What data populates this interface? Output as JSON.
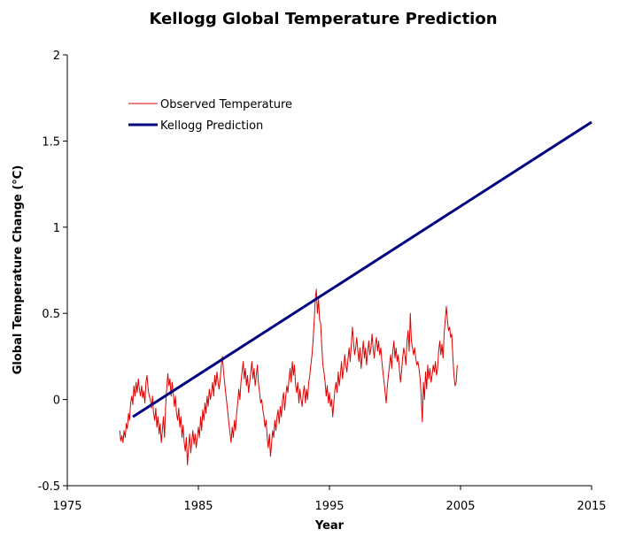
{
  "chart_data": {
    "type": "line",
    "title": "Kellogg Global Temperature Prediction",
    "xlabel": "Year",
    "ylabel": "Global Temperature Change (°C)",
    "xlim": [
      1975,
      2015
    ],
    "ylim": [
      -0.5,
      2
    ],
    "x_ticks": [
      1975,
      1985,
      1995,
      2005,
      2015
    ],
    "x_tick_labels": [
      "1975",
      "1985",
      "1995",
      "2005",
      "2015"
    ],
    "y_ticks": [
      -0.5,
      0,
      0.5,
      1,
      1.5,
      2
    ],
    "y_tick_labels": [
      "-0.5",
      "0",
      "0.5",
      "1",
      "1.5",
      "2"
    ],
    "grid": false,
    "legend": {
      "placement": "top-left",
      "entries": [
        "Observed Temperature",
        "Kellogg Prediction"
      ]
    },
    "series": [
      {
        "name": "Observed Temperature",
        "color": "#e00000",
        "x_start": 1979.0,
        "x_step": 0.08333,
        "values": [
          -0.18,
          -0.24,
          -0.21,
          -0.25,
          -0.18,
          -0.22,
          -0.14,
          -0.17,
          -0.08,
          -0.12,
          -0.02,
          0.02,
          -0.03,
          0.08,
          0.02,
          0.1,
          0.04,
          0.12,
          0.06,
          0.02,
          0.08,
          0.01,
          0.05,
          -0.02,
          0.1,
          0.14,
          0.06,
          0.02,
          0.0,
          -0.05,
          0.02,
          -0.08,
          -0.12,
          -0.05,
          -0.16,
          -0.1,
          -0.2,
          -0.14,
          -0.25,
          -0.18,
          -0.1,
          -0.22,
          -0.04,
          0.06,
          0.15,
          0.08,
          0.12,
          0.02,
          0.1,
          0.04,
          -0.04,
          0.02,
          -0.08,
          -0.12,
          -0.05,
          -0.16,
          -0.1,
          -0.22,
          -0.15,
          -0.25,
          -0.3,
          -0.22,
          -0.38,
          -0.28,
          -0.2,
          -0.31,
          -0.24,
          -0.18,
          -0.26,
          -0.2,
          -0.28,
          -0.22,
          -0.16,
          -0.22,
          -0.1,
          -0.18,
          -0.06,
          -0.12,
          -0.02,
          -0.08,
          0.02,
          -0.04,
          0.06,
          0.0,
          0.04,
          0.1,
          0.02,
          0.14,
          0.08,
          0.16,
          0.1,
          0.06,
          0.12,
          0.2,
          0.25,
          0.16,
          0.1,
          0.04,
          -0.02,
          -0.08,
          -0.14,
          -0.2,
          -0.25,
          -0.16,
          -0.22,
          -0.12,
          -0.18,
          -0.08,
          -0.02,
          0.06,
          0.0,
          0.1,
          0.16,
          0.22,
          0.12,
          0.18,
          0.08,
          0.14,
          0.04,
          0.1,
          0.16,
          0.22,
          0.12,
          0.18,
          0.08,
          0.14,
          0.2,
          0.1,
          0.04,
          -0.02,
          0.0,
          -0.06,
          -0.1,
          -0.16,
          -0.12,
          -0.22,
          -0.28,
          -0.2,
          -0.33,
          -0.26,
          -0.18,
          -0.22,
          -0.12,
          -0.18,
          -0.1,
          -0.06,
          -0.14,
          -0.04,
          -0.1,
          0.0,
          0.04,
          -0.06,
          0.02,
          0.08,
          0.04,
          0.12,
          0.18,
          0.1,
          0.22,
          0.14,
          0.2,
          0.08,
          0.04,
          0.1,
          -0.02,
          0.06,
          0.0,
          -0.04,
          0.04,
          0.08,
          -0.02,
          0.06,
          0.0,
          0.1,
          0.14,
          0.2,
          0.26,
          0.34,
          0.45,
          0.58,
          0.64,
          0.5,
          0.58,
          0.46,
          0.44,
          0.3,
          0.2,
          0.16,
          0.1,
          0.02,
          0.08,
          -0.02,
          0.04,
          -0.04,
          0.0,
          -0.1,
          -0.02,
          0.06,
          0.1,
          0.04,
          0.16,
          0.08,
          0.14,
          0.22,
          0.12,
          0.18,
          0.26,
          0.2,
          0.16,
          0.24,
          0.3,
          0.22,
          0.32,
          0.42,
          0.34,
          0.26,
          0.3,
          0.36,
          0.28,
          0.22,
          0.3,
          0.18,
          0.26,
          0.34,
          0.24,
          0.3,
          0.2,
          0.28,
          0.34,
          0.26,
          0.3,
          0.38,
          0.3,
          0.24,
          0.32,
          0.36,
          0.28,
          0.34,
          0.26,
          0.3,
          0.22,
          0.16,
          0.1,
          0.04,
          -0.02,
          0.08,
          0.14,
          0.2,
          0.26,
          0.18,
          0.28,
          0.34,
          0.24,
          0.3,
          0.22,
          0.26,
          0.18,
          0.1,
          0.16,
          0.24,
          0.3,
          0.26,
          0.2,
          0.34,
          0.4,
          0.28,
          0.5,
          0.34,
          0.3,
          0.26,
          0.3,
          0.24,
          0.2,
          0.22,
          0.18,
          0.12,
          0.02,
          -0.13,
          0.1,
          0.0,
          0.16,
          0.06,
          0.2,
          0.12,
          0.18,
          0.1,
          0.14,
          0.2,
          0.16,
          0.22,
          0.14,
          0.18,
          0.28,
          0.34,
          0.26,
          0.32,
          0.24,
          0.38,
          0.46,
          0.54,
          0.46,
          0.4,
          0.42,
          0.36,
          0.38,
          0.24,
          0.14,
          0.08,
          0.1,
          0.2
        ]
      },
      {
        "name": "Kellogg Prediction",
        "color": "#000080",
        "x": [
          1980,
          2015
        ],
        "values": [
          -0.1,
          1.61
        ]
      }
    ]
  }
}
